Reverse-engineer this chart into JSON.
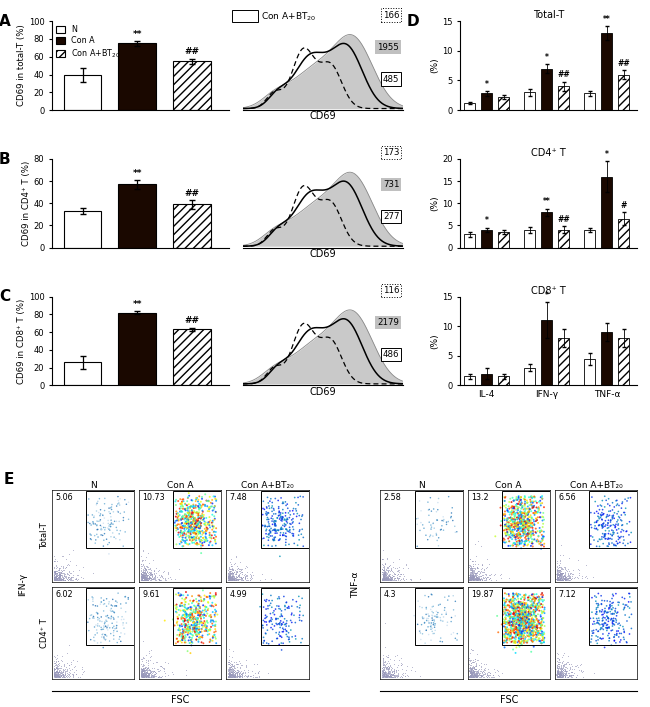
{
  "panel_A": {
    "ylabel": "CD69 in total-T (%)",
    "ylim": [
      0,
      100
    ],
    "yticks": [
      0,
      20,
      40,
      60,
      80,
      100
    ],
    "bars": [
      39,
      75,
      55
    ],
    "errors": [
      8,
      3,
      3
    ],
    "annotations": [
      "",
      "**",
      "##"
    ],
    "flow_numbers": [
      "166",
      "1955",
      "485"
    ]
  },
  "panel_B": {
    "ylabel": "CD69 in CD4⁺ T (%)",
    "ylim": [
      0,
      80
    ],
    "yticks": [
      0,
      20,
      40,
      60,
      80
    ],
    "bars": [
      33,
      57,
      39
    ],
    "errors": [
      3,
      4,
      4
    ],
    "annotations": [
      "",
      "**",
      "##"
    ],
    "flow_numbers": [
      "173",
      "731",
      "277"
    ]
  },
  "panel_C": {
    "ylabel": "CD69 in CD8⁺ T (%)",
    "ylim": [
      0,
      100
    ],
    "yticks": [
      0,
      20,
      40,
      60,
      80,
      100
    ],
    "bars": [
      26,
      82,
      63
    ],
    "errors": [
      7,
      2,
      2
    ],
    "annotations": [
      "",
      "**",
      "##"
    ],
    "flow_numbers": [
      "116",
      "2179",
      "486"
    ]
  },
  "panel_D_total": {
    "title": "Total-T",
    "ylim": [
      0,
      15
    ],
    "yticks": [
      0,
      5,
      10,
      15
    ],
    "groups": [
      {
        "bars": [
          1.2,
          2.8,
          2.2
        ],
        "errors": [
          0.2,
          0.4,
          0.3
        ],
        "annots": [
          "",
          "*",
          ""
        ]
      },
      {
        "bars": [
          3.0,
          7.0,
          4.0
        ],
        "errors": [
          0.6,
          0.8,
          0.8
        ],
        "annots": [
          "",
          "*",
          "##"
        ]
      },
      {
        "bars": [
          2.8,
          13.0,
          6.0
        ],
        "errors": [
          0.4,
          1.2,
          0.8
        ],
        "annots": [
          "",
          "**",
          "##"
        ]
      }
    ],
    "xlabels": [
      "IL-4",
      "IFN-γ",
      "TNF-α"
    ]
  },
  "panel_D_cd4": {
    "title": "CD4⁺ T",
    "ylim": [
      0,
      20
    ],
    "yticks": [
      0,
      5,
      10,
      15,
      20
    ],
    "groups": [
      {
        "bars": [
          3.0,
          4.0,
          3.5
        ],
        "errors": [
          0.5,
          0.5,
          0.5
        ],
        "annots": [
          "",
          "*",
          ""
        ]
      },
      {
        "bars": [
          4.0,
          8.0,
          4.0
        ],
        "errors": [
          0.6,
          0.8,
          0.8
        ],
        "annots": [
          "",
          "**",
          "##"
        ]
      },
      {
        "bars": [
          4.0,
          16.0,
          6.5
        ],
        "errors": [
          0.5,
          3.5,
          1.5
        ],
        "annots": [
          "",
          "*",
          "#"
        ]
      }
    ],
    "xlabels": [
      "IL-4",
      "IFN-γ",
      "TNF-α"
    ]
  },
  "panel_D_cd8": {
    "title": "CD8⁺ T",
    "ylim": [
      0,
      15
    ],
    "yticks": [
      0,
      5,
      10,
      15
    ],
    "groups": [
      {
        "bars": [
          1.5,
          2.0,
          1.5
        ],
        "errors": [
          0.5,
          1.0,
          0.5
        ],
        "annots": [
          "",
          "",
          ""
        ]
      },
      {
        "bars": [
          3.0,
          11.0,
          8.0
        ],
        "errors": [
          0.6,
          3.0,
          1.5
        ],
        "annots": [
          "",
          "*",
          ""
        ]
      },
      {
        "bars": [
          4.5,
          9.0,
          8.0
        ],
        "errors": [
          1.0,
          1.5,
          1.5
        ],
        "annots": [
          "",
          "",
          ""
        ]
      }
    ],
    "xlabels": [
      "IL-4",
      "IFN-γ",
      "TNF-α"
    ]
  },
  "left_values": [
    [
      "5.06",
      "10.73",
      "7.48"
    ],
    [
      "6.02",
      "9.61",
      "4.99"
    ]
  ],
  "right_values": [
    [
      "2.58",
      "13.2",
      "6.56"
    ],
    [
      "4.3",
      "19.87",
      "7.12"
    ]
  ],
  "col_titles": [
    "N",
    "Con A",
    "Con A+BT₂₀"
  ],
  "left_row_labels": [
    "Total-T",
    "CD4⁺ T"
  ],
  "left_ylabel": "IFN-γ",
  "right_ylabel": "TNF-α",
  "bar_colors": [
    "white",
    "#1a0800",
    "white"
  ],
  "bar_hatches": [
    null,
    null,
    "////"
  ],
  "bar_edgecolor": "black"
}
